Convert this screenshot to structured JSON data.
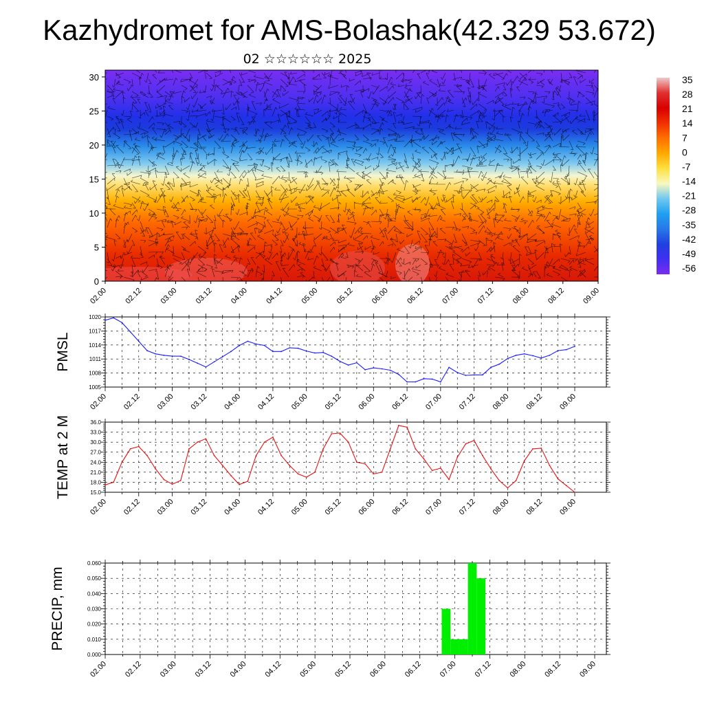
{
  "title": "Kazhydromet for AMS-Bolashak(42.329 53.672)",
  "subtitle": "02 ☆☆☆☆☆☆ 2025",
  "time_ticks": [
    "02.00",
    "02.12",
    "03.00",
    "03.12",
    "04.00",
    "04.12",
    "05.00",
    "05.12",
    "06.00",
    "06.12",
    "07.00",
    "07.12",
    "08.00",
    "08.12",
    "09.00"
  ],
  "colors": {
    "pmsl_line": "#1a1aff",
    "temp_line": "#e81010",
    "precip_bar": "#00ee00",
    "grid": "#000000"
  },
  "colorbar": {
    "labels": [
      "35",
      "28",
      "21",
      "14",
      "7",
      "0",
      "-7",
      "-14",
      "-21",
      "-28",
      "-35",
      "-42",
      "-49",
      "-56"
    ],
    "stops": [
      "#f0c8c8",
      "#e03030",
      "#d80000",
      "#f03000",
      "#ff7000",
      "#ffa800",
      "#ffe040",
      "#f8f8c0",
      "#70c8f0",
      "#20a0f0",
      "#2878e8",
      "#2040e0",
      "#4030f0",
      "#7a2cf0"
    ]
  },
  "chart_data": [
    {
      "type": "heatmap",
      "title": "",
      "xlabel": "",
      "ylabel": "",
      "y_ticks": [
        "0",
        "5",
        "10",
        "15",
        "20",
        "25",
        "30"
      ],
      "ylim": [
        0,
        31
      ],
      "x_ticks": [
        "02.00",
        "02.12",
        "03.00",
        "03.12",
        "04.00",
        "04.12",
        "05.00",
        "05.12",
        "06.00",
        "06.12",
        "07.00",
        "07.12",
        "08.00",
        "08.12",
        "09.00"
      ],
      "value_range": [
        -60,
        38
      ],
      "overlay": "wind barbs"
    },
    {
      "type": "line",
      "ylabel": "PMSL",
      "ylim": [
        1005,
        1020
      ],
      "y_ticks": [
        "1005",
        "1008",
        "1011",
        "1014",
        "1017",
        "1020"
      ],
      "grid": true,
      "x": [
        0,
        3,
        6,
        9,
        12,
        15,
        18,
        21,
        24,
        27,
        30,
        33,
        36,
        39,
        42,
        45,
        48,
        51,
        54,
        57,
        60,
        63,
        66,
        69,
        72,
        75,
        78,
        81,
        84,
        87,
        90,
        93,
        96,
        99,
        102,
        105,
        108,
        111,
        114,
        117,
        120,
        123,
        126,
        129,
        132,
        135,
        138,
        141,
        144,
        147,
        150,
        153,
        156,
        159,
        162,
        165,
        168
      ],
      "series": [
        {
          "values": [
            1019.3,
            1019.8,
            1018.8,
            1016.8,
            1014.8,
            1012.8,
            1012.1,
            1011.8,
            1011.6,
            1011.6,
            1010.9,
            1010.1,
            1009.3,
            1010.4,
            1011.5,
            1012.6,
            1013.9,
            1014.8,
            1014.2,
            1013.9,
            1012.6,
            1012.6,
            1013.4,
            1013.3,
            1012.7,
            1012.3,
            1012.4,
            1011.6,
            1010.5,
            1009.7,
            1010.2,
            1008.7,
            1009.1,
            1008.9,
            1008.6,
            1007.7,
            1006.1,
            1006.1,
            1006.8,
            1006.7,
            1006.1,
            1009.2,
            1008.1,
            1007.5,
            1007.6,
            1007.6,
            1009.2,
            1009.9,
            1011.1,
            1011.8,
            1012.1,
            1011.7,
            1011.2,
            1011.8,
            1012.8,
            1013.0,
            1013.7
          ]
        }
      ]
    },
    {
      "type": "line",
      "ylabel": "TEMP at 2 M",
      "ylim": [
        15.0,
        36.0
      ],
      "y_ticks": [
        "15.0",
        "18.0",
        "21.0",
        "24.0",
        "27.0",
        "30.0",
        "33.0",
        "36.0"
      ],
      "grid": true,
      "x": [
        0,
        3,
        6,
        9,
        12,
        15,
        18,
        21,
        24,
        27,
        30,
        33,
        36,
        39,
        42,
        45,
        48,
        51,
        54,
        57,
        60,
        63,
        66,
        69,
        72,
        75,
        78,
        81,
        84,
        87,
        90,
        93,
        96,
        99,
        102,
        105,
        108,
        111,
        114,
        117,
        120,
        123,
        126,
        129,
        132,
        135,
        138,
        141,
        144,
        147,
        150,
        153,
        156,
        159,
        162,
        165,
        168
      ],
      "series": [
        {
          "values": [
            17.2,
            18.0,
            24.0,
            28.0,
            28.7,
            26.0,
            22.0,
            18.8,
            17.4,
            18.5,
            28.0,
            30.0,
            31.0,
            26.0,
            23.0,
            20.0,
            17.3,
            18.3,
            26.0,
            30.0,
            31.5,
            26.0,
            23.0,
            20.5,
            19.5,
            21.0,
            28.0,
            32.5,
            32.7,
            30.0,
            24.0,
            23.5,
            20.5,
            21.0,
            28.0,
            35.0,
            34.5,
            28.0,
            25.0,
            21.5,
            22.2,
            18.8,
            25.5,
            29.5,
            30.5,
            26.0,
            22.0,
            18.5,
            16.3,
            18.5,
            24.5,
            28.0,
            28.2,
            23.0,
            19.0,
            17.0,
            15.0
          ]
        }
      ]
    },
    {
      "type": "bar",
      "ylabel": "PRECIP, mm",
      "ylim": [
        0.0,
        0.06
      ],
      "y_ticks": [
        "0.000",
        "0.010",
        "0.020",
        "0.030",
        "0.040",
        "0.050",
        "0.060"
      ],
      "grid": true,
      "x": [
        117,
        120,
        123,
        126,
        129
      ],
      "values": [
        0.03,
        0.01,
        0.01,
        0.06,
        0.05
      ]
    }
  ]
}
